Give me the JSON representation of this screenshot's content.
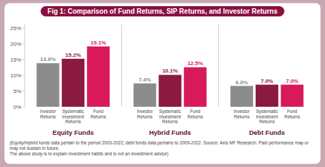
{
  "chart_data": {
    "type": "bar",
    "title": "Fig 1: Comparison of Fund Returns, SIP Returns, and Investor Returns",
    "categories": [
      "Equity Funds",
      "Hybrid Funds",
      "Debt Funds"
    ],
    "series": [
      {
        "name": "Investor Returns",
        "color": "#8c8c8c",
        "values": [
          13.8,
          7.4,
          6.6
        ],
        "value_labels": [
          "13.8%",
          "7.4%",
          "6.6%"
        ]
      },
      {
        "name": "Systematic Investment Returns",
        "color": "#8b1a40",
        "values": [
          15.2,
          10.1,
          7.0
        ],
        "value_labels": [
          "15.2%",
          "10.1%",
          "7.0%"
        ]
      },
      {
        "name": "Fund Returns",
        "color": "#d91a5a",
        "values": [
          19.1,
          12.5,
          7.0
        ],
        "value_labels": [
          "19.1%",
          "12.5%",
          "7.0%"
        ]
      }
    ],
    "ylim": [
      0,
      26
    ],
    "yticks": [
      {
        "value": 0,
        "label": "0%"
      },
      {
        "value": 5,
        "label": "5%"
      },
      {
        "value": 10,
        "label": "10%"
      },
      {
        "value": 15,
        "label": "15%"
      },
      {
        "value": 20,
        "label": "20%"
      },
      {
        "value": 25,
        "label": "25%"
      }
    ],
    "data_labels": true,
    "grid": false,
    "footnotes": [
      "(Equity/Hybrid funds data pertain to the period 2003-2022; debt funds data pertains to 2009-2022. Source: Axis MF Research. Past performance may or may not sustain in future.",
      "The above study is to explain investment habits and is not an investment advice)"
    ]
  }
}
